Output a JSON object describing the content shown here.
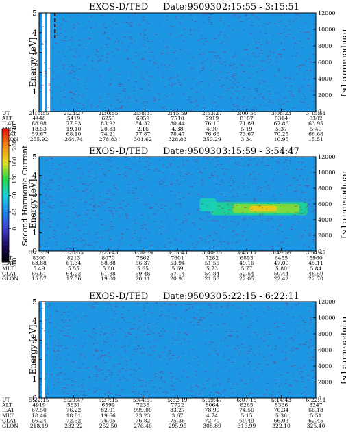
{
  "chart_data": [
    {
      "type": "heatmap",
      "title": "EXOS-D/TED",
      "date": "Date:950930",
      "time_range": "2:15:55 - 3:15:51",
      "ylabel": "Energy [eV]",
      "ylim": [
        0,
        5
      ],
      "yticks": [
        "0",
        "1",
        "2",
        "3",
        "4",
        "5"
      ],
      "y2label": "Temperature [K]",
      "y2lim": [
        0,
        12000
      ],
      "y2ticks": [
        "0",
        "2000",
        "4000",
        "6000",
        "8000",
        "10000",
        "12000"
      ],
      "background_level": 50,
      "features": [
        {
          "name": "data-gap-1",
          "t0": 0.01,
          "t1": 0.022,
          "e0": 0,
          "e1": 5,
          "level": null
        },
        {
          "name": "data-gap-2",
          "t0": 0.028,
          "t1": 0.04,
          "e0": 0,
          "e1": 5,
          "level": null
        },
        {
          "name": "dashed-trace",
          "t0": 0.055,
          "t1": 0.06,
          "e0": 3.7,
          "e1": 5,
          "level": -1
        }
      ],
      "ephemeris": {
        "labels": [
          "UT",
          "ALT",
          "ILAT",
          "MLT",
          "GLAT",
          "GLON"
        ],
        "columns": [
          [
            "2:15:55",
            "4448",
            "68.98",
            "18.53",
            "59.67",
            "255.92"
          ],
          [
            "2:23:27",
            "5419",
            "77.93",
            "19.10",
            "68.10",
            "264.74"
          ],
          [
            "2:30:55",
            "6253",
            "83.92",
            "20.83",
            "74.21",
            "278.83"
          ],
          [
            "2:38:31",
            "6959",
            "84.32",
            "2.16",
            "77.87",
            "301.62"
          ],
          [
            "2:45:59",
            "7510",
            "80.44",
            "4.38",
            "78.47",
            "328.83"
          ],
          [
            "2:53:27",
            "7919",
            "76.10",
            "4.90",
            "76.66",
            "350.29"
          ],
          [
            "3:00:55",
            "8187",
            "71.89",
            "5.19",
            "73.67",
            "3.34"
          ],
          [
            "3:08:23",
            "8314",
            "67.86",
            "5.37",
            "70.25",
            "10.95"
          ],
          [
            "3:15:51",
            "8302",
            "63.95",
            "5.49",
            "66.68",
            "15.51"
          ]
        ]
      }
    },
    {
      "type": "heatmap",
      "title": "EXOS-D/TED",
      "date": "Date:950930",
      "time_range": "3:15:59 - 3:54:47",
      "ylabel": "Energy [eV]",
      "ylim": [
        0,
        5
      ],
      "yticks": [
        "0",
        "1",
        "2",
        "3",
        "4",
        "5"
      ],
      "y2label": "Temperature [K]",
      "y2lim": [
        0,
        12000
      ],
      "y2ticks": [
        "0",
        "2000",
        "4000",
        "6000",
        "8000",
        "10000",
        "12000"
      ],
      "background_level": 50,
      "features": [
        {
          "name": "enhancement-core",
          "t0": 0.62,
          "t1": 0.97,
          "e0": 1.9,
          "e1": 2.6,
          "level": 100
        },
        {
          "name": "enhancement-mid",
          "t0": 0.7,
          "t1": 0.94,
          "e0": 2.0,
          "e1": 2.5,
          "level": 140
        },
        {
          "name": "enhancement-peak",
          "t0": 0.76,
          "t1": 0.86,
          "e0": 2.1,
          "e1": 2.4,
          "level": 170
        },
        {
          "name": "enhancement-onset",
          "t0": 0.58,
          "t1": 0.64,
          "e0": 2.1,
          "e1": 2.8,
          "level": 90
        }
      ],
      "ephemeris": {
        "labels": [
          "UT",
          "ALT",
          "ILAT",
          "MLT",
          "GLAT",
          "GLON"
        ],
        "columns": [
          [
            "3:15:59",
            "8300",
            "63.88",
            "5.49",
            "66.61",
            "15.57"
          ],
          [
            "3:20:55",
            "8213",
            "61.34",
            "5.55",
            "64.22",
            "17.56"
          ],
          [
            "3:25:43",
            "8070",
            "58.88",
            "5.60",
            "61.88",
            "19.00"
          ],
          [
            "3:30:39",
            "7862",
            "56.37",
            "5.65",
            "59.48",
            "20.11"
          ],
          [
            "3:35:43",
            "7601",
            "53.94",
            "5.69",
            "57.14",
            "20.93"
          ],
          [
            "3:40:15",
            "7282",
            "51.55",
            "5.73",
            "54.84",
            "21.55"
          ],
          [
            "3:45:11",
            "6893",
            "49.16",
            "5.77",
            "52.54",
            "22.05"
          ],
          [
            "3:49:59",
            "6455",
            "47.00",
            "5.80",
            "50.44",
            "22.42"
          ],
          [
            "3:54:47",
            "5960",
            "45.11",
            "5.84",
            "48.59",
            "22.70"
          ]
        ]
      }
    },
    {
      "type": "heatmap",
      "title": "EXOS-D/TED",
      "date": "Date:950930",
      "time_range": "5:22:15 - 6:22:11",
      "ylabel": "Energy [eV]",
      "ylim": [
        0,
        5
      ],
      "yticks": [
        "0",
        "1",
        "2",
        "3",
        "4",
        "5"
      ],
      "y2label": "Temperature [K]",
      "y2lim": [
        0,
        12000
      ],
      "y2ticks": [
        "0",
        "2000",
        "4000",
        "6000",
        "8000",
        "10000",
        "12000"
      ],
      "background_level": 50,
      "features": [
        {
          "name": "data-gap-1",
          "t0": 0.01,
          "t1": 0.022,
          "e0": 0,
          "e1": 5,
          "level": null
        }
      ],
      "ephemeris": {
        "labels": [
          "UT",
          "ALT",
          "ILAT",
          "MLT",
          "GLAT",
          "GLON"
        ],
        "columns": [
          [
            "5:22:15",
            "4919",
            "67.50",
            "18.46",
            "66.24",
            "218.19"
          ],
          [
            "5:29:47",
            "5831",
            "76.22",
            "18.81",
            "72.52",
            "232.22"
          ],
          [
            "5:37:15",
            "6599",
            "82.91",
            "19.66",
            "76.05",
            "252.50"
          ],
          [
            "5:44:51",
            "7238",
            "999.00",
            "23.23",
            "76.82",
            "276.46"
          ],
          [
            "5:52:19",
            "7722",
            "83.27",
            "3.67",
            "75.36",
            "295.95"
          ],
          [
            "5:59:47",
            "8064",
            "78.90",
            "4.74",
            "72.70",
            "308.89"
          ],
          [
            "6:07:15",
            "8265",
            "74.56",
            "5.15",
            "69.49",
            "316.99"
          ],
          [
            "6:14:43",
            "8336",
            "70.34",
            "5.36",
            "66.03",
            "322.10"
          ],
          [
            "6:22:11",
            "8247",
            "66.18",
            "5.51",
            "62.45",
            "325.40"
          ]
        ]
      }
    }
  ],
  "colorbar": {
    "label": "Second Harmonic Current",
    "range": [
      -80,
      240
    ],
    "ticks": [
      "-80",
      "0",
      "40",
      "80",
      "120",
      "160",
      "200",
      "240"
    ]
  },
  "colors": {
    "background": "#3f3fc8",
    "noise": "#8a2a68"
  }
}
